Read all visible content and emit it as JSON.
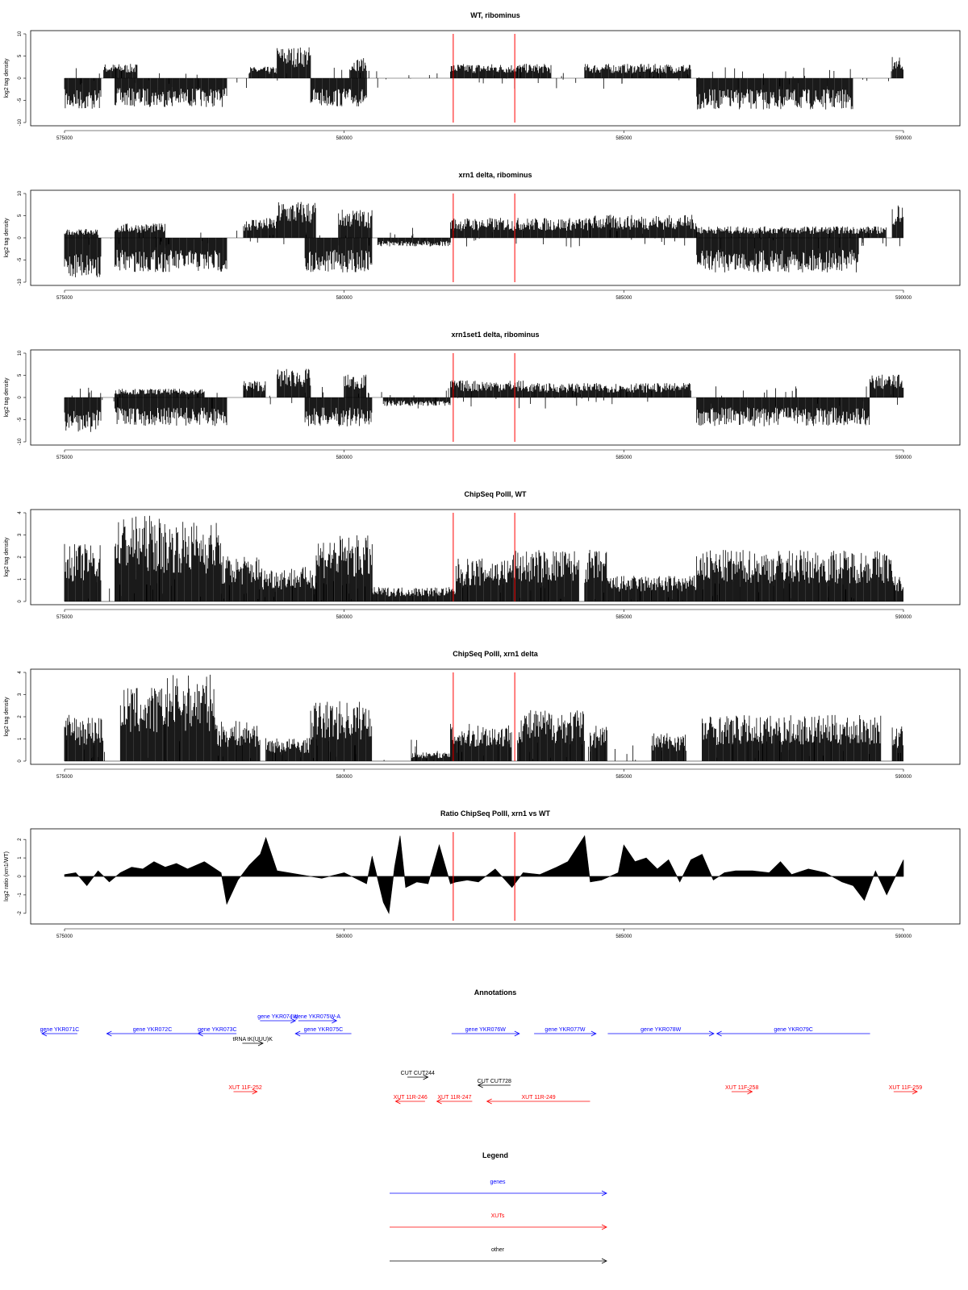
{
  "colors": {
    "genes": "#0000ff",
    "xuts": "#ff0000",
    "other": "#000000",
    "marker": "#ff0000",
    "signal": "#000000"
  },
  "chart_data": [
    {
      "type": "bar",
      "title": "WT, ribominus",
      "ylabel": "log2 tag density",
      "xlim": [
        575000,
        590000
      ],
      "ylim": [
        -10,
        10
      ],
      "xticks": [
        "575000",
        "580000",
        "585000",
        "590000"
      ],
      "yticks": [
        "-10",
        "-5",
        "0",
        "5",
        "10"
      ],
      "markers_x": [
        581950,
        583050
      ],
      "segments": [
        {
          "x": [
            575000,
            575650
          ],
          "y": -5.5,
          "sign": -1
        },
        {
          "x": [
            575700,
            576300
          ],
          "y": 2.5,
          "sign": 1
        },
        {
          "x": [
            575900,
            577900
          ],
          "y": -5,
          "sign": -1
        },
        {
          "x": [
            578300,
            578800
          ],
          "y": 2,
          "sign": 1
        },
        {
          "x": [
            578800,
            579400
          ],
          "y": 5.5,
          "sign": 1
        },
        {
          "x": [
            579400,
            580400
          ],
          "y": -5,
          "sign": -1
        },
        {
          "x": [
            580100,
            580400
          ],
          "y": 3.5,
          "sign": 1
        },
        {
          "x": [
            581900,
            583100
          ],
          "y": 2.5,
          "sign": 1
        },
        {
          "x": [
            583100,
            583700
          ],
          "y": 2.5,
          "sign": 1
        },
        {
          "x": [
            584300,
            586200
          ],
          "y": 2.5,
          "sign": 1
        },
        {
          "x": [
            586300,
            589100
          ],
          "y": -5.5,
          "sign": -1
        },
        {
          "x": [
            589800,
            590000
          ],
          "y": 4,
          "sign": 1
        }
      ]
    },
    {
      "type": "bar",
      "title": "xrn1 delta, ribominus",
      "ylabel": "log2 tag density",
      "xlim": [
        575000,
        590000
      ],
      "ylim": [
        -10,
        10
      ],
      "xticks": [
        "575000",
        "580000",
        "585000",
        "590000"
      ],
      "yticks": [
        "-10",
        "-5",
        "0",
        "5",
        "10"
      ],
      "markers_x": [
        581950,
        583050
      ],
      "segments": [
        {
          "x": [
            575000,
            575650
          ],
          "y": -7,
          "sign": -1
        },
        {
          "x": [
            575000,
            575600
          ],
          "y": 1.5,
          "sign": 1
        },
        {
          "x": [
            575900,
            577900
          ],
          "y": -6,
          "sign": -1
        },
        {
          "x": [
            575900,
            576800
          ],
          "y": 2.5,
          "sign": 1
        },
        {
          "x": [
            578200,
            578800
          ],
          "y": 3.5,
          "sign": 1
        },
        {
          "x": [
            578800,
            579500
          ],
          "y": 6.5,
          "sign": 1
        },
        {
          "x": [
            579300,
            580500
          ],
          "y": -6,
          "sign": -1
        },
        {
          "x": [
            579900,
            580500
          ],
          "y": 5,
          "sign": 1
        },
        {
          "x": [
            580600,
            581900
          ],
          "y": -1.5,
          "sign": -1
        },
        {
          "x": [
            581900,
            583200
          ],
          "y": 3.5,
          "sign": 1
        },
        {
          "x": [
            583200,
            584400
          ],
          "y": 3.5,
          "sign": 1
        },
        {
          "x": [
            584400,
            586300
          ],
          "y": 4,
          "sign": 1
        },
        {
          "x": [
            586300,
            589200
          ],
          "y": -6,
          "sign": -1
        },
        {
          "x": [
            586300,
            589700
          ],
          "y": 2,
          "sign": 1
        },
        {
          "x": [
            589800,
            590000
          ],
          "y": 6,
          "sign": 1
        }
      ]
    },
    {
      "type": "bar",
      "title": "xrn1set1 delta, ribominus",
      "ylabel": "log2 tag density",
      "xlim": [
        575000,
        590000
      ],
      "ylim": [
        -10,
        10
      ],
      "xticks": [
        "575000",
        "580000",
        "585000",
        "590000"
      ],
      "yticks": [
        "-10",
        "-5",
        "0",
        "5",
        "10"
      ],
      "markers_x": [
        581950,
        583050
      ],
      "segments": [
        {
          "x": [
            575000,
            575650
          ],
          "y": -6,
          "sign": -1
        },
        {
          "x": [
            575900,
            577900
          ],
          "y": -5,
          "sign": -1
        },
        {
          "x": [
            575900,
            577500
          ],
          "y": 1.5,
          "sign": 1
        },
        {
          "x": [
            578200,
            578600
          ],
          "y": 3,
          "sign": 1
        },
        {
          "x": [
            578800,
            579400
          ],
          "y": 5,
          "sign": 1
        },
        {
          "x": [
            579300,
            580500
          ],
          "y": -5,
          "sign": -1
        },
        {
          "x": [
            580000,
            580400
          ],
          "y": 4,
          "sign": 1
        },
        {
          "x": [
            580700,
            581900
          ],
          "y": -1.5,
          "sign": -1
        },
        {
          "x": [
            581900,
            583200
          ],
          "y": 3,
          "sign": 1
        },
        {
          "x": [
            583200,
            586200
          ],
          "y": 2.5,
          "sign": 1
        },
        {
          "x": [
            586300,
            589400
          ],
          "y": -5,
          "sign": -1
        },
        {
          "x": [
            589400,
            590000
          ],
          "y": 4,
          "sign": 1
        }
      ]
    },
    {
      "type": "bar",
      "title": "ChipSeq PolII, WT",
      "ylabel": "log2 tag density",
      "xlim": [
        575000,
        590000
      ],
      "ylim": [
        0,
        4
      ],
      "xticks": [
        "575000",
        "580000",
        "585000",
        "590000"
      ],
      "yticks": [
        "0",
        "1",
        "2",
        "3",
        "4"
      ],
      "markers_x": [
        581950,
        583050
      ],
      "segments": [
        {
          "x": [
            575000,
            575650
          ],
          "y": 2,
          "sign": 1
        },
        {
          "x": [
            575900,
            576700
          ],
          "y": 3,
          "sign": 1
        },
        {
          "x": [
            576700,
            577800
          ],
          "y": 2.8,
          "sign": 1
        },
        {
          "x": [
            577800,
            578500
          ],
          "y": 1.6,
          "sign": 1
        },
        {
          "x": [
            578500,
            579500
          ],
          "y": 1.2,
          "sign": 1
        },
        {
          "x": [
            579500,
            580500
          ],
          "y": 2.3,
          "sign": 1
        },
        {
          "x": [
            580500,
            582000
          ],
          "y": 0.5,
          "sign": 1
        },
        {
          "x": [
            582000,
            583000
          ],
          "y": 1.5,
          "sign": 1
        },
        {
          "x": [
            583000,
            584200
          ],
          "y": 1.8,
          "sign": 1
        },
        {
          "x": [
            584300,
            584700
          ],
          "y": 1.8,
          "sign": 1
        },
        {
          "x": [
            584700,
            586300
          ],
          "y": 0.9,
          "sign": 1
        },
        {
          "x": [
            586300,
            589800
          ],
          "y": 1.8,
          "sign": 1
        },
        {
          "x": [
            589800,
            590000
          ],
          "y": 0.9,
          "sign": 1
        }
      ]
    },
    {
      "type": "bar",
      "title": "ChipSeq PolII, xrn1 delta",
      "ylabel": "log2 tag density",
      "xlim": [
        575000,
        590000
      ],
      "ylim": [
        0,
        4
      ],
      "xticks": [
        "575000",
        "580000",
        "585000",
        "590000"
      ],
      "yticks": [
        "0",
        "1",
        "2",
        "3",
        "4"
      ],
      "markers_x": [
        581950,
        583050
      ],
      "segments": [
        {
          "x": [
            575000,
            575700
          ],
          "y": 1.6,
          "sign": 1
        },
        {
          "x": [
            576000,
            576800
          ],
          "y": 2.6,
          "sign": 1
        },
        {
          "x": [
            576800,
            577700
          ],
          "y": 3,
          "sign": 1
        },
        {
          "x": [
            577700,
            578500
          ],
          "y": 1.4,
          "sign": 1
        },
        {
          "x": [
            578600,
            579400
          ],
          "y": 0.8,
          "sign": 1
        },
        {
          "x": [
            579400,
            580500
          ],
          "y": 2.1,
          "sign": 1
        },
        {
          "x": [
            581200,
            581900
          ],
          "y": 0.3,
          "sign": 1
        },
        {
          "x": [
            581900,
            583000
          ],
          "y": 1.3,
          "sign": 1
        },
        {
          "x": [
            583100,
            584300
          ],
          "y": 1.8,
          "sign": 1
        },
        {
          "x": [
            584400,
            584700
          ],
          "y": 1.3,
          "sign": 1
        },
        {
          "x": [
            585500,
            586100
          ],
          "y": 1,
          "sign": 1
        },
        {
          "x": [
            586400,
            589600
          ],
          "y": 1.6,
          "sign": 1
        },
        {
          "x": [
            589800,
            590000
          ],
          "y": 1.2,
          "sign": 1
        }
      ]
    },
    {
      "type": "area",
      "title": "Ratio ChipSeq PolII, xrn1 vs WT",
      "ylabel": "log2 ratio (xrn1/WT)",
      "xlim": [
        575000,
        590000
      ],
      "ylim": [
        -2.4,
        2.4
      ],
      "xticks": [
        "575000",
        "580000",
        "585000",
        "590000"
      ],
      "yticks": [
        "-2",
        "-1",
        "0",
        "1",
        "2"
      ],
      "markers_x": [
        581950,
        583050
      ],
      "x": [
        575000,
        575200,
        575400,
        575600,
        575800,
        576000,
        576200,
        576400,
        576600,
        576800,
        577000,
        577200,
        577500,
        577800,
        577900,
        578100,
        578300,
        578500,
        578600,
        578800,
        579200,
        579600,
        580000,
        580400,
        580500,
        580700,
        580800,
        580900,
        581000,
        581100,
        581300,
        581500,
        581700,
        581900,
        582000,
        582200,
        582400,
        582700,
        583000,
        583200,
        583500,
        583800,
        584000,
        584300,
        584400,
        584600,
        584900,
        585000,
        585200,
        585400,
        585600,
        585800,
        586000,
        586200,
        586400,
        586600,
        586800,
        587000,
        587300,
        587600,
        587800,
        588000,
        588300,
        588600,
        588900,
        589100,
        589300,
        589500,
        589700,
        590000
      ],
      "y": [
        0.1,
        0.2,
        -0.5,
        0.3,
        -0.3,
        0.2,
        0.5,
        0.4,
        0.8,
        0.5,
        0.7,
        0.4,
        0.8,
        0.2,
        -1.5,
        -0.2,
        0.6,
        1.2,
        2.1,
        0.3,
        0.1,
        -0.1,
        0.2,
        -0.4,
        1.1,
        -1.4,
        -2.0,
        0.5,
        2.2,
        -0.6,
        -0.3,
        -0.4,
        1.7,
        -0.4,
        -0.3,
        -0.2,
        -0.3,
        0.4,
        -0.6,
        0.2,
        0.1,
        0.5,
        0.8,
        2.2,
        -0.3,
        -0.2,
        0.2,
        1.7,
        0.8,
        1.0,
        0.4,
        0.9,
        -0.3,
        0.9,
        1.2,
        -0.2,
        0.2,
        0.3,
        0.3,
        0.2,
        0.8,
        0.1,
        0.4,
        0.2,
        -0.3,
        -0.5,
        -1.3,
        0.3,
        -1.0,
        0.9
      ]
    },
    {
      "type": "table",
      "title": "Annotations",
      "xlim": [
        575000,
        590000
      ],
      "rows": [
        {
          "label": "gene YKR071C",
          "kind": "genes",
          "row": 0,
          "x1": 575000,
          "x2": 575600,
          "dir": "left"
        },
        {
          "label": "gene YKR072C",
          "kind": "genes",
          "row": 0,
          "x1": 576100,
          "x2": 577650,
          "dir": "left"
        },
        {
          "label": "gene YKR073C",
          "kind": "genes",
          "row": 0,
          "x1": 577650,
          "x2": 578300,
          "dir": "left"
        },
        {
          "label": "gene YKR074W",
          "kind": "genes",
          "row": 1,
          "x1": 578700,
          "x2": 579300,
          "dir": "right"
        },
        {
          "label": "gene YKR075W-A",
          "kind": "genes",
          "row": 1,
          "x1": 579350,
          "x2": 580000,
          "dir": "right"
        },
        {
          "label": "gene YKR075C",
          "kind": "genes",
          "row": 0,
          "x1": 579300,
          "x2": 580250,
          "dir": "left"
        },
        {
          "label": "tRNA tK(UUU)K",
          "kind": "other",
          "row": -1,
          "x1": 578400,
          "x2": 578750,
          "dir": "right"
        },
        {
          "label": "gene YKR076W",
          "kind": "genes",
          "row": 0,
          "x1": 581950,
          "x2": 583100,
          "dir": "right"
        },
        {
          "label": "gene YKR077W",
          "kind": "genes",
          "row": 0,
          "x1": 583350,
          "x2": 584400,
          "dir": "right"
        },
        {
          "label": "gene YKR078W",
          "kind": "genes",
          "row": 0,
          "x1": 584600,
          "x2": 586400,
          "dir": "right"
        },
        {
          "label": "gene YKR079C",
          "kind": "genes",
          "row": 0,
          "x1": 586450,
          "x2": 589050,
          "dir": "left"
        },
        {
          "label": "CUT CUT244",
          "kind": "other",
          "row": -3,
          "x1": 581200,
          "x2": 581550,
          "dir": "right"
        },
        {
          "label": "CUT CUT728",
          "kind": "other",
          "row": -4,
          "x1": 582400,
          "x2": 582950,
          "dir": "left"
        },
        {
          "label": "XUT 11F-252",
          "kind": "xuts",
          "row": -5,
          "x1": 578250,
          "x2": 578650,
          "dir": "right"
        },
        {
          "label": "XUT 11R-246",
          "kind": "xuts",
          "row": -6,
          "x1": 581000,
          "x2": 581500,
          "dir": "left"
        },
        {
          "label": "XUT 11R-247",
          "kind": "xuts",
          "row": -6,
          "x1": 581700,
          "x2": 582300,
          "dir": "left"
        },
        {
          "label": "XUT 11R-249",
          "kind": "xuts",
          "row": -6,
          "x1": 582550,
          "x2": 584300,
          "dir": "left"
        },
        {
          "label": "XUT 11F-258",
          "kind": "xuts",
          "row": -5,
          "x1": 586700,
          "x2": 587050,
          "dir": "right"
        },
        {
          "label": "XUT 11F-259",
          "kind": "xuts",
          "row": -5,
          "x1": 589450,
          "x2": 589850,
          "dir": "right"
        }
      ]
    }
  ],
  "legend": {
    "title": "Legend",
    "items": [
      {
        "label": "genes",
        "kind": "genes"
      },
      {
        "label": "XUTs",
        "kind": "xuts"
      },
      {
        "label": "other",
        "kind": "other"
      }
    ]
  }
}
